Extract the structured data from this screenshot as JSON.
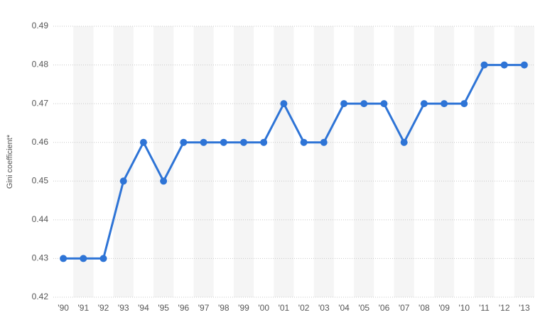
{
  "chart_data": {
    "type": "line",
    "y_label": "Gini coefficient*",
    "categories": [
      "'90",
      "'91",
      "'92",
      "'93",
      "'94",
      "'95",
      "'96",
      "'97",
      "'98",
      "'99",
      "'00",
      "'01",
      "'02",
      "'03",
      "'04",
      "'05",
      "'06",
      "'07",
      "'08",
      "'09",
      "'10",
      "'11",
      "'12",
      "'13"
    ],
    "values": [
      0.43,
      0.43,
      0.43,
      0.45,
      0.46,
      0.45,
      0.46,
      0.46,
      0.46,
      0.46,
      0.46,
      0.47,
      0.46,
      0.46,
      0.47,
      0.47,
      0.47,
      0.46,
      0.47,
      0.47,
      0.47,
      0.48,
      0.48,
      0.48
    ],
    "color": "#2e74d6",
    "ylim": [
      0.42,
      0.49
    ],
    "yticks": [
      0.42,
      0.43,
      0.44,
      0.45,
      0.46,
      0.47,
      0.48,
      0.49
    ],
    "grid": true
  }
}
